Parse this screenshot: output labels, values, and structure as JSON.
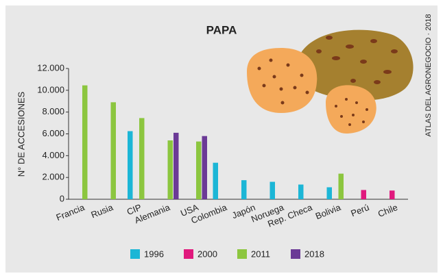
{
  "chart_data": {
    "type": "bar",
    "title": "PAPA",
    "y_label": "N° DE ACCESIONES",
    "side_note": "ATLAS DEL AGRONEGOCIO · 2018",
    "categories": [
      "Francia",
      "Rusia",
      "CIP",
      "Alemania",
      "USA",
      "Colombia",
      "Japón",
      "Noruega",
      "Rep. Checa",
      "Bolivia",
      "Perú",
      "Chile"
    ],
    "series": [
      {
        "name": "1996",
        "color": "#1cb6d6",
        "values": [
          null,
          null,
          6250,
          null,
          null,
          3350,
          1750,
          1600,
          1350,
          1100,
          null,
          null
        ]
      },
      {
        "name": "2000",
        "color": "#e0197d",
        "values": [
          null,
          null,
          null,
          null,
          null,
          null,
          null,
          null,
          null,
          null,
          850,
          800
        ]
      },
      {
        "name": "2011",
        "color": "#8cc63f",
        "values": [
          10450,
          8900,
          7450,
          5400,
          5300,
          null,
          null,
          null,
          null,
          2350,
          null,
          null
        ]
      },
      {
        "name": "2018",
        "color": "#6b3a96",
        "values": [
          null,
          null,
          null,
          6100,
          5800,
          null,
          null,
          null,
          null,
          null,
          null,
          null
        ]
      }
    ],
    "ylim": [
      0,
      12000
    ],
    "yticks": [
      0,
      {
        "value": 2000,
        "label": "2.000"
      },
      {
        "value": 4000,
        "label": "4.000"
      },
      {
        "value": 6000,
        "label": "6.000"
      },
      {
        "value": 8000,
        "label": "8.000"
      },
      {
        "value": 10000,
        "label": "10.000"
      },
      {
        "value": 12000,
        "label": "12.000"
      }
    ]
  }
}
